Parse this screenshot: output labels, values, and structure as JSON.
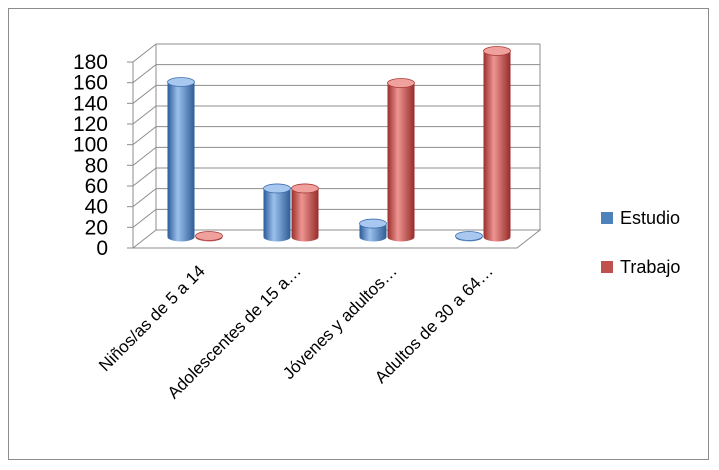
{
  "chart_data": {
    "type": "bar",
    "title": "",
    "xlabel": "",
    "ylabel": "",
    "ylim": [
      0,
      180
    ],
    "y_ticks": [
      "0",
      "20",
      "40",
      "60",
      "80",
      "100",
      "120",
      "140",
      "160",
      "180"
    ],
    "categories": [
      "Niños/as de 5 a 14",
      "Adolescentes de 15 a…",
      "Jóvenes y adultos…",
      "Adultos de 30 a 64…"
    ],
    "series": [
      {
        "name": "Estudio",
        "values": [
          150,
          47,
          13,
          1
        ]
      },
      {
        "name": "Trabajo",
        "values": [
          1,
          47,
          149,
          180
        ]
      }
    ],
    "colors": {
      "Estudio": "#4f81bd",
      "Trabajo": "#c0504d"
    },
    "grid": true,
    "legend": "right",
    "style": "3d-cylinder"
  }
}
